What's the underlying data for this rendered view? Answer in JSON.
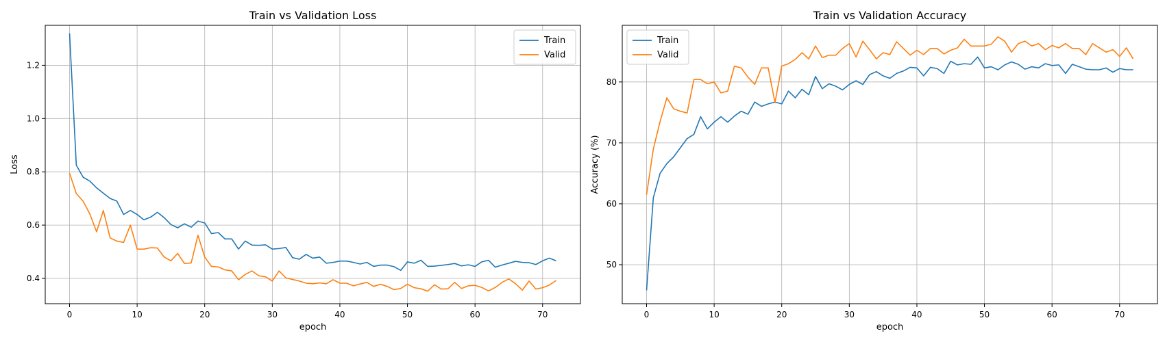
{
  "chart_data": [
    {
      "type": "line",
      "title": "Train vs Validation Loss",
      "xlabel": "epoch",
      "ylabel": "Loss",
      "xlim": [
        -3.6,
        75.6
      ],
      "ylim": [
        0.305,
        1.35
      ],
      "xticks": [
        0,
        10,
        20,
        30,
        40,
        50,
        60,
        70
      ],
      "yticks": [
        0.4,
        0.6,
        0.8,
        1.0,
        1.2
      ],
      "ytick_labels": [
        "0.4",
        "0.6",
        "0.8",
        "1.0",
        "1.2"
      ],
      "grid": true,
      "legend_position": "upper-right",
      "series": [
        {
          "name": "Train",
          "color": "#1f77b4",
          "values": [
            1.32,
            0.825,
            0.78,
            0.765,
            0.74,
            0.72,
            0.7,
            0.69,
            0.64,
            0.655,
            0.64,
            0.62,
            0.63,
            0.648,
            0.628,
            0.602,
            0.59,
            0.605,
            0.592,
            0.615,
            0.608,
            0.568,
            0.572,
            0.548,
            0.548,
            0.51,
            0.54,
            0.525,
            0.524,
            0.526,
            0.51,
            0.512,
            0.516,
            0.478,
            0.472,
            0.49,
            0.476,
            0.48,
            0.457,
            0.46,
            0.465,
            0.465,
            0.46,
            0.454,
            0.46,
            0.445,
            0.45,
            0.45,
            0.444,
            0.43,
            0.462,
            0.457,
            0.468,
            0.445,
            0.446,
            0.449,
            0.452,
            0.456,
            0.447,
            0.451,
            0.445,
            0.462,
            0.468,
            0.442,
            0.45,
            0.457,
            0.464,
            0.46,
            0.459,
            0.452,
            0.466,
            0.476,
            0.466
          ]
        },
        {
          "name": "Valid",
          "color": "#ff7f0e",
          "values": [
            0.795,
            0.718,
            0.69,
            0.642,
            0.575,
            0.655,
            0.552,
            0.54,
            0.535,
            0.6,
            0.51,
            0.51,
            0.515,
            0.514,
            0.48,
            0.466,
            0.494,
            0.456,
            0.458,
            0.562,
            0.48,
            0.445,
            0.443,
            0.432,
            0.428,
            0.395,
            0.415,
            0.428,
            0.41,
            0.406,
            0.39,
            0.428,
            0.402,
            0.396,
            0.39,
            0.382,
            0.38,
            0.383,
            0.38,
            0.395,
            0.382,
            0.382,
            0.372,
            0.379,
            0.385,
            0.37,
            0.378,
            0.37,
            0.358,
            0.362,
            0.378,
            0.365,
            0.361,
            0.352,
            0.376,
            0.36,
            0.361,
            0.385,
            0.362,
            0.372,
            0.374,
            0.366,
            0.353,
            0.366,
            0.385,
            0.398,
            0.38,
            0.356,
            0.39,
            0.36,
            0.365,
            0.375,
            0.392
          ]
        }
      ]
    },
    {
      "type": "line",
      "title": "Train vs Validation Accuracy",
      "xlabel": "epoch",
      "ylabel": "Accuracy (%)",
      "xlim": [
        -3.6,
        75.6
      ],
      "ylim": [
        43.6,
        89.3
      ],
      "xticks": [
        0,
        10,
        20,
        30,
        40,
        50,
        60,
        70
      ],
      "yticks": [
        50,
        60,
        70,
        80
      ],
      "ytick_labels": [
        "50",
        "60",
        "70",
        "80"
      ],
      "grid": true,
      "legend_position": "upper-left",
      "series": [
        {
          "name": "Train",
          "color": "#1f77b4",
          "values": [
            45.8,
            61.0,
            65.0,
            66.6,
            67.7,
            69.2,
            70.7,
            71.4,
            74.3,
            72.3,
            73.4,
            74.3,
            73.4,
            74.4,
            75.2,
            74.7,
            76.7,
            76.0,
            76.4,
            76.7,
            76.4,
            78.5,
            77.4,
            78.8,
            77.9,
            80.9,
            78.9,
            79.7,
            79.3,
            78.7,
            79.6,
            80.2,
            79.6,
            81.2,
            81.7,
            81.0,
            80.6,
            81.4,
            81.8,
            82.4,
            82.3,
            81.0,
            82.4,
            82.2,
            81.4,
            83.4,
            82.8,
            83.0,
            82.9,
            84.1,
            82.3,
            82.5,
            82.0,
            82.8,
            83.3,
            82.9,
            82.1,
            82.5,
            82.3,
            83.0,
            82.7,
            82.8,
            81.4,
            82.9,
            82.5,
            82.1,
            82.0,
            82.0,
            82.3,
            81.6,
            82.2,
            82.0,
            82.0
          ]
        },
        {
          "name": "Valid",
          "color": "#ff7f0e",
          "values": [
            61.5,
            69.0,
            73.5,
            77.4,
            75.6,
            75.2,
            74.9,
            80.4,
            80.4,
            79.7,
            80.0,
            78.2,
            78.5,
            82.6,
            82.3,
            80.8,
            79.6,
            82.3,
            82.3,
            76.6,
            82.6,
            83.0,
            83.7,
            84.8,
            83.8,
            85.9,
            84.0,
            84.4,
            84.4,
            85.5,
            86.3,
            84.1,
            86.7,
            85.3,
            83.8,
            84.8,
            84.5,
            86.6,
            85.5,
            84.4,
            85.2,
            84.5,
            85.5,
            85.5,
            84.6,
            85.2,
            85.6,
            87.0,
            85.9,
            85.9,
            85.9,
            86.2,
            87.4,
            86.7,
            84.9,
            86.3,
            86.7,
            85.9,
            86.3,
            85.3,
            86.0,
            85.6,
            86.3,
            85.5,
            85.5,
            84.5,
            86.3,
            85.6,
            84.9,
            85.3,
            84.2,
            85.6,
            83.8
          ]
        }
      ]
    }
  ]
}
